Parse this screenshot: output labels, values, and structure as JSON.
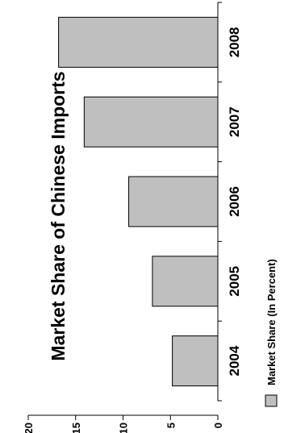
{
  "chart_data": {
    "type": "bar",
    "orientation": "horizontal",
    "rotated": "90-degrees-clockwise",
    "title": "Market Share of Chinese Imports",
    "categories": [
      "2004",
      "2005",
      "2006",
      "2007",
      "2008"
    ],
    "series": [
      {
        "name": "Market Share (In Percent)",
        "values": [
          4.8,
          6.9,
          9.4,
          14.1,
          16.8
        ]
      }
    ],
    "value_ticks": [
      "0",
      "5",
      "10",
      "15",
      "20"
    ],
    "xlim": [
      0,
      20
    ],
    "grid": false,
    "legend_position": "bottom",
    "colors": {
      "bar_fill": "#bfbfbf",
      "bar_stroke": "#000000",
      "text": "#000000"
    }
  }
}
